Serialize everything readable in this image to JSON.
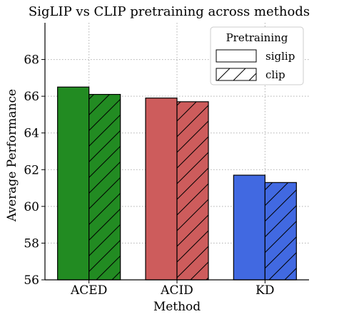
{
  "chart_data": {
    "type": "bar",
    "title": "SigLIP vs CLIP pretraining across methods",
    "xlabel": "Method",
    "ylabel": "Average Performance",
    "categories": [
      "ACED",
      "ACID",
      "KD"
    ],
    "category_colors": [
      "#228b22",
      "#cd5c5c",
      "#4169e1"
    ],
    "series": [
      {
        "name": "siglip",
        "hatch": "none",
        "values": [
          66.5,
          65.9,
          61.7
        ]
      },
      {
        "name": "clip",
        "hatch": "diagonal",
        "values": [
          66.1,
          65.7,
          61.3
        ]
      }
    ],
    "ylim": [
      56,
      70
    ],
    "yticks": [
      56,
      58,
      60,
      62,
      64,
      66,
      68
    ],
    "grid": true,
    "legend": {
      "title": "Pretraining",
      "placement": "top-right"
    }
  }
}
